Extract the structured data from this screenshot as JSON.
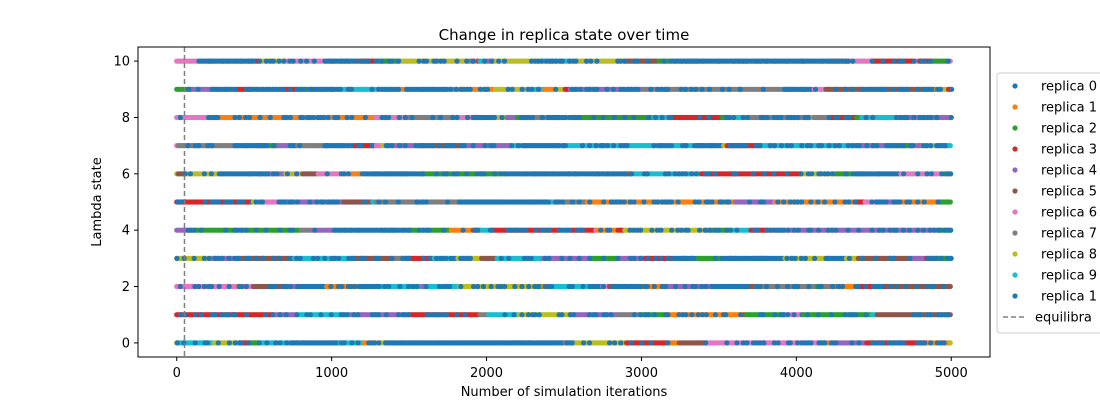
{
  "chart_data": {
    "type": "scatter",
    "title": "Change in replica state over time",
    "xlabel": "Number of simulation iterations",
    "ylabel": "Lambda state",
    "xlim": [
      -250,
      5250
    ],
    "ylim": [
      -0.5,
      10.5
    ],
    "xticks": [
      0,
      1000,
      2000,
      3000,
      4000,
      5000
    ],
    "yticks": [
      0,
      2,
      4,
      6,
      8,
      10
    ],
    "iterations": [
      0,
      5000
    ],
    "lambda_states": [
      0,
      1,
      2,
      3,
      4,
      5,
      6,
      7,
      8,
      9,
      10
    ],
    "legend_position": "right, outside plot",
    "series": [
      {
        "name": "replica 0",
        "color": "#1f77b4"
      },
      {
        "name": "replica 1",
        "color": "#ff7f0e"
      },
      {
        "name": "replica 2",
        "color": "#2ca02c"
      },
      {
        "name": "replica 3",
        "color": "#d62728"
      },
      {
        "name": "replica 4",
        "color": "#9467bd"
      },
      {
        "name": "replica 5",
        "color": "#8c564b"
      },
      {
        "name": "replica 6",
        "color": "#e377c2"
      },
      {
        "name": "replica 7",
        "color": "#7f7f7f"
      },
      {
        "name": "replica 8",
        "color": "#bcbd22"
      },
      {
        "name": "replica 9",
        "color": "#17becf"
      },
      {
        "name": "replica 1",
        "color": "#1f77b4"
      }
    ],
    "equilibration": {
      "name": "equilibra",
      "x": 50,
      "color": "#7f7f7f",
      "style": "dashed"
    }
  }
}
